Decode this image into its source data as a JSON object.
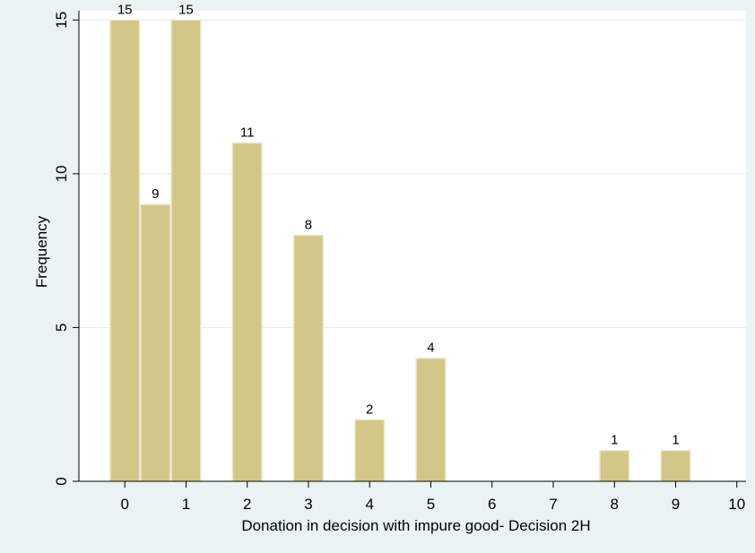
{
  "chart_data": {
    "type": "bar",
    "title": "",
    "xlabel": "Donation in decision with impure good- Decision 2H",
    "ylabel": "Frequency",
    "bar_width": 0.5,
    "x": [
      0,
      0.5,
      1,
      2,
      3,
      4,
      5,
      8,
      9
    ],
    "values": [
      15,
      9,
      15,
      11,
      8,
      2,
      4,
      1,
      1
    ],
    "data_labels": [
      "15",
      "9",
      "15",
      "11",
      "8",
      "2",
      "4",
      "1",
      "1"
    ],
    "xlim": [
      -0.75,
      10.15
    ],
    "ylim": [
      0,
      15.3
    ],
    "xticks": [
      0,
      1,
      2,
      3,
      4,
      5,
      6,
      7,
      8,
      9,
      10
    ],
    "xtick_labels": [
      "0",
      "1",
      "2",
      "3",
      "4",
      "5",
      "6",
      "7",
      "8",
      "9",
      "10"
    ],
    "yticks": [
      0,
      5,
      10,
      15
    ],
    "ytick_labels": [
      "0",
      "5",
      "10",
      "15"
    ],
    "grid": true,
    "legend": "none",
    "colors": {
      "background": "#eaf2f3",
      "plot_background": "#ffffff",
      "bar_fill": "#d2c689",
      "bar_stroke": "#ede6c4",
      "grid": "#e3edef",
      "axis": "#000000"
    }
  }
}
